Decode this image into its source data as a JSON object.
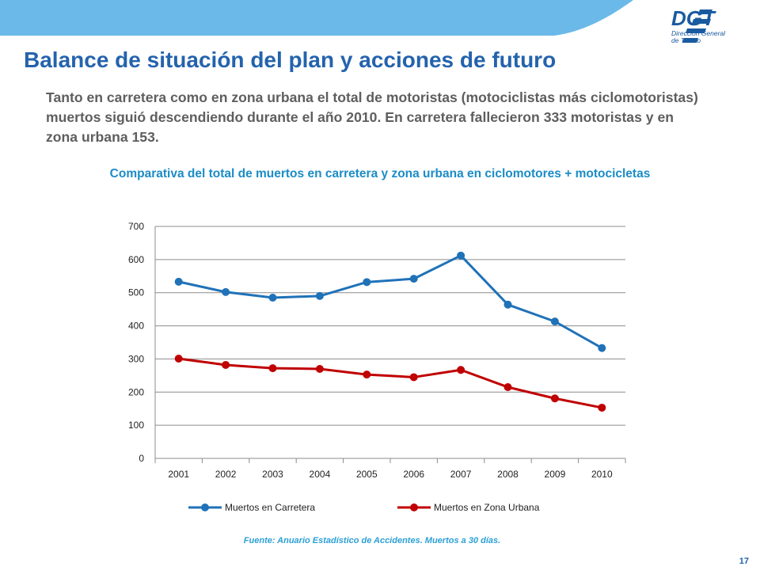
{
  "header": {
    "title": "Balance de situación del plan y acciones de futuro",
    "logo_text": "DGT",
    "logo_subtitle_1": "Dirección General",
    "logo_subtitle_2": "de Tráfico"
  },
  "intro": "Tanto en carretera como en zona urbana el total de motoristas (motociclistas más ciclomotoristas) muertos siguió descendiendo durante el año 2010. En carretera fallecieron 333 motoristas y en zona urbana 153.",
  "chart_title": "Comparativa del total de muertos en carretera y zona urbana en ciclomotores + motocicletas",
  "source": "Fuente: Anuario Estadístico de Accidentes. Muertos a 30 días.",
  "page_number": "17",
  "colors": {
    "title": "#2463ad",
    "series_carretera": "#1f72b8",
    "series_urbana": "#c00000",
    "accent": "#1b8cc6"
  },
  "chart_data": {
    "type": "line",
    "categories": [
      "2001",
      "2002",
      "2003",
      "2004",
      "2005",
      "2006",
      "2007",
      "2008",
      "2009",
      "2010"
    ],
    "series": [
      {
        "name": "Muertos en Carretera",
        "color": "#1f72b8",
        "values": [
          533,
          502,
          485,
          490,
          532,
          542,
          612,
          464,
          413,
          333
        ]
      },
      {
        "name": "Muertos en Zona Urbana",
        "color": "#c00000",
        "values": [
          301,
          282,
          272,
          270,
          253,
          245,
          267,
          215,
          181,
          153
        ]
      }
    ],
    "ylim": [
      0,
      700
    ],
    "yticks": [
      0,
      100,
      200,
      300,
      400,
      500,
      600,
      700
    ],
    "grid": true,
    "legend": "bottom"
  }
}
